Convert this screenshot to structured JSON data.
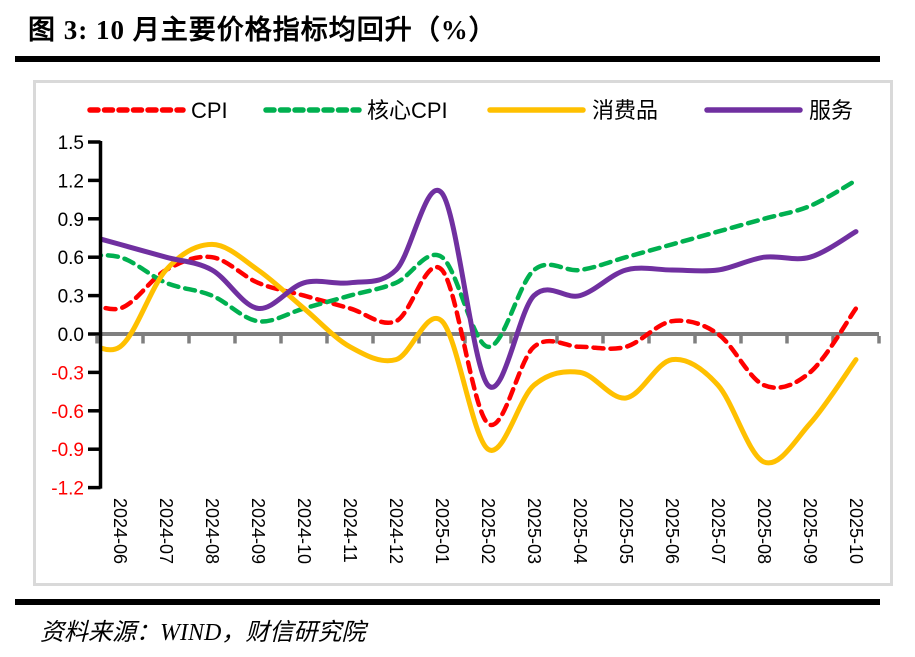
{
  "page": {
    "title": "图 3: 10 月主要价格指标均回升（%）",
    "source": "资料来源：WIND，财信研究院"
  },
  "colors": {
    "cpi_red": "#FF0000",
    "core_cpi_green": "#00B050",
    "consumer_goods_yellow": "#FFC000",
    "services_purple": "#7030A0",
    "zero_line_gray": "#7F7F7F",
    "axis_black": "#000000",
    "negative_tick_label_red": "#FF0000",
    "frame_border_gray": "#D9D9D9"
  },
  "legend": {
    "items": [
      {
        "label": "CPI",
        "color": "#FF0000",
        "dashed": true
      },
      {
        "label": "核心CPI",
        "color": "#00B050",
        "dashed": true
      },
      {
        "label": "消费品",
        "color": "#FFC000",
        "dashed": false
      },
      {
        "label": "服务",
        "color": "#7030A0",
        "dashed": false
      }
    ]
  },
  "chart_data": {
    "type": "line",
    "smoothed": true,
    "categories": [
      "2024-06",
      "2024-07",
      "2024-08",
      "2024-09",
      "2024-10",
      "2024-11",
      "2024-12",
      "2025-01",
      "2025-02",
      "2025-03",
      "2025-04",
      "2025-05",
      "2025-06",
      "2025-07",
      "2025-08",
      "2025-09",
      "2025-10"
    ],
    "series": [
      {
        "name": "CPI",
        "color": "#FF0000",
        "dashed": true,
        "edge_value_at_axis": 0.3,
        "values": [
          0.2,
          0.5,
          0.6,
          0.4,
          0.3,
          0.2,
          0.1,
          0.5,
          -0.7,
          -0.1,
          -0.1,
          -0.1,
          0.1,
          0.0,
          -0.4,
          -0.3,
          0.2
        ]
      },
      {
        "name": "核心CPI",
        "color": "#00B050",
        "dashed": true,
        "edge_value_at_axis": 0.6,
        "values": [
          0.6,
          0.4,
          0.3,
          0.1,
          0.2,
          0.3,
          0.4,
          0.6,
          -0.1,
          0.5,
          0.5,
          0.6,
          0.7,
          0.8,
          0.9,
          1.0,
          1.2
        ]
      },
      {
        "name": "消费品",
        "color": "#FFC000",
        "dashed": false,
        "edge_value_at_axis": 0.0,
        "values": [
          -0.1,
          0.5,
          0.7,
          0.5,
          0.2,
          -0.1,
          -0.2,
          0.1,
          -0.9,
          -0.4,
          -0.3,
          -0.5,
          -0.2,
          -0.4,
          -1.0,
          -0.7,
          -0.2
        ]
      },
      {
        "name": "服务",
        "color": "#7030A0",
        "dashed": false,
        "edge_value_at_axis": 0.8,
        "values": [
          0.7,
          0.6,
          0.5,
          0.2,
          0.4,
          0.4,
          0.5,
          1.1,
          -0.4,
          0.3,
          0.3,
          0.5,
          0.5,
          0.5,
          0.6,
          0.6,
          0.8
        ]
      }
    ],
    "ylim": [
      -1.2,
      1.5
    ],
    "ytick_step": 0.3,
    "ytick_labels": [
      "1.5",
      "1.2",
      "0.9",
      "0.6",
      "0.3",
      "0.0",
      "-0.3",
      "-0.6",
      "-0.9",
      "-1.2"
    ],
    "grid": false,
    "zero_axis_line": true,
    "legend_position": "top",
    "x_label_rotation_deg": 90
  }
}
